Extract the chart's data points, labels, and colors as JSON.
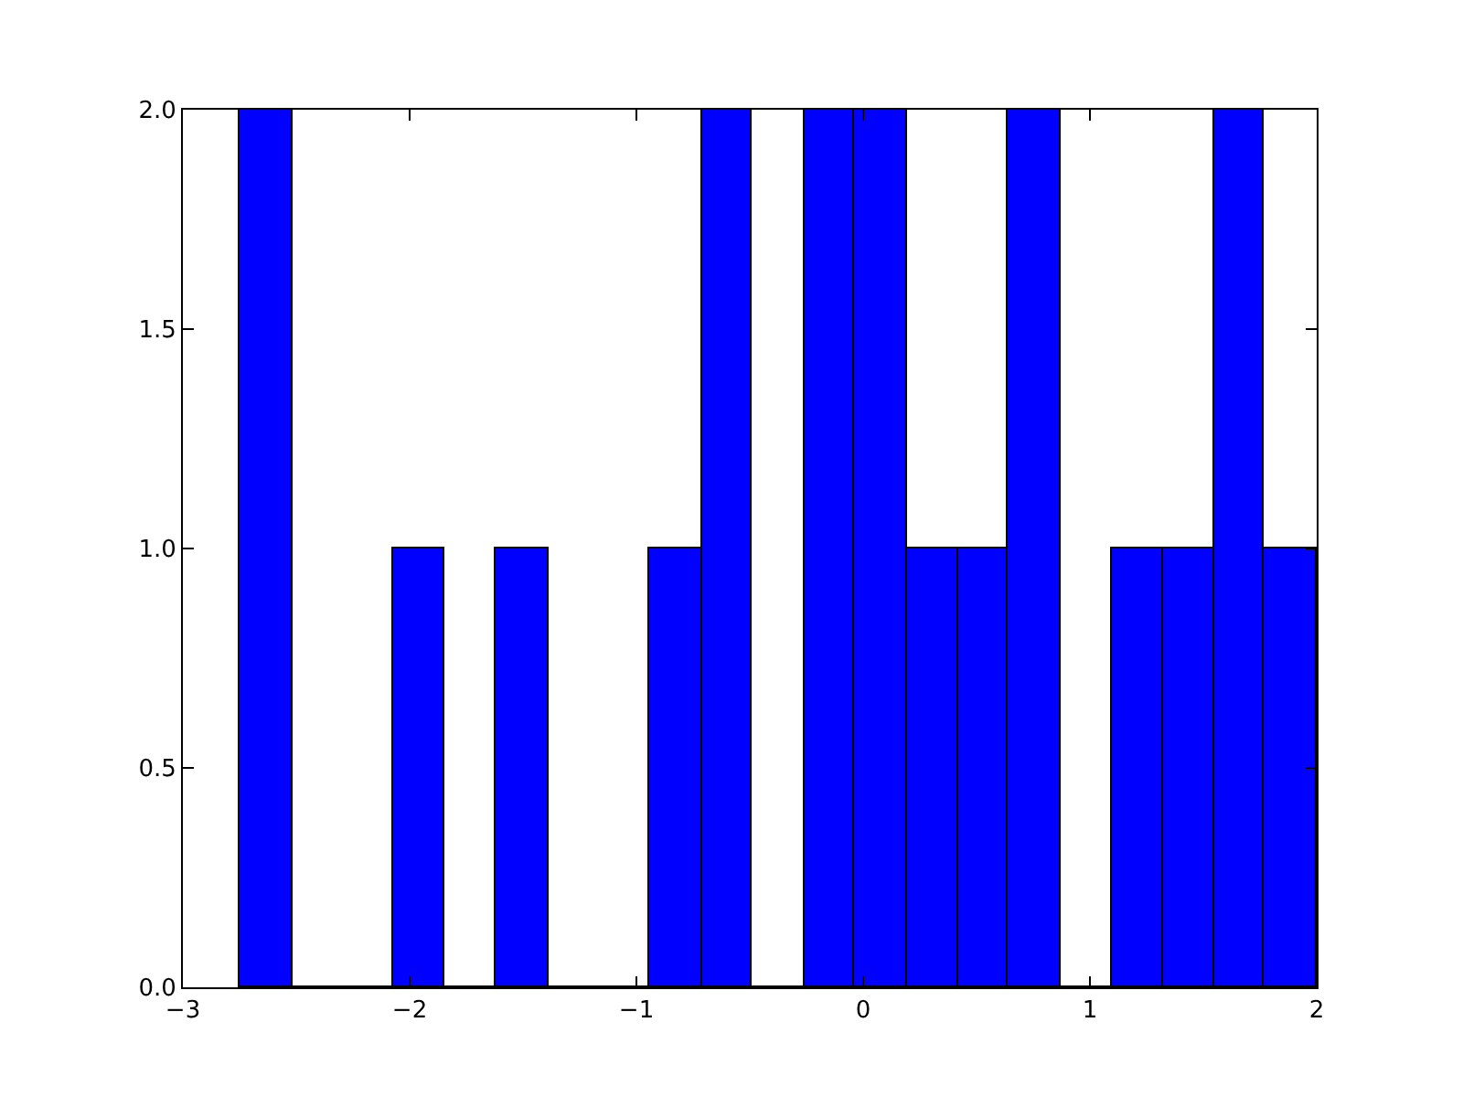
{
  "chart_data": {
    "type": "histogram",
    "bins": [
      -2.75,
      -2.52,
      -2.07,
      -1.85,
      -1.62,
      -1.39,
      -0.94,
      -0.71,
      -0.49,
      -0.26,
      -0.04,
      0.19,
      0.42,
      0.64,
      0.87,
      1.1,
      1.32,
      1.55,
      1.77,
      2.0
    ],
    "values": [
      2,
      0,
      1,
      0,
      1,
      0,
      1,
      2,
      0,
      2,
      2,
      1,
      1,
      2,
      0,
      1,
      1,
      2,
      1
    ],
    "color": "#0000ff",
    "xlim": [
      -3,
      2
    ],
    "xticks": [
      -3,
      -2,
      -1,
      0,
      1,
      2
    ],
    "ylim": [
      0,
      2
    ],
    "yticks": [
      {
        "value": 0,
        "label": "0.0"
      },
      {
        "value": 0.5,
        "label": "0.5"
      },
      {
        "value": 1,
        "label": "1.0"
      },
      {
        "value": 1.5,
        "label": "1.5"
      },
      {
        "value": 2,
        "label": "2.0"
      }
    ]
  }
}
